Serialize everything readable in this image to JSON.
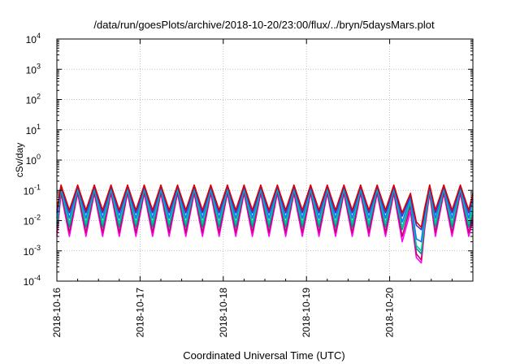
{
  "chart_data": {
    "type": "line",
    "title": "/data/run/goesPlots/archive/2018-10-20/23:00/flux/../bryn/5daysMars.plot",
    "xlabel": "Coordinated Universal Time (UTC)",
    "ylabel": "cSv/day",
    "yscale": "log",
    "ylim": [
      0.0001,
      10000
    ],
    "yticks": [
      {
        "value": 0.0001,
        "base": "10",
        "exp": "-4"
      },
      {
        "value": 0.001,
        "base": "10",
        "exp": "-3"
      },
      {
        "value": 0.01,
        "base": "10",
        "exp": "-2"
      },
      {
        "value": 0.1,
        "base": "10",
        "exp": "-1"
      },
      {
        "value": 1,
        "base": "10",
        "exp": "0"
      },
      {
        "value": 10,
        "base": "10",
        "exp": "1"
      },
      {
        "value": 100,
        "base": "10",
        "exp": "2"
      },
      {
        "value": 1000,
        "base": "10",
        "exp": "3"
      },
      {
        "value": 10000,
        "base": "10",
        "exp": "4"
      }
    ],
    "xlim": [
      "2018-10-16",
      "2018-10-21"
    ],
    "xticks": [
      "2018-10-16",
      "2018-10-17",
      "2018-10-18",
      "2018-10-19",
      "2018-10-20"
    ],
    "grid": true,
    "legend": "none",
    "x_days": [
      0,
      0.05,
      0.15,
      0.25,
      0.35,
      0.45,
      0.55,
      0.65,
      0.75,
      0.85,
      0.95,
      1.05,
      1.15,
      1.25,
      1.35,
      1.45,
      1.55,
      1.65,
      1.75,
      1.85,
      1.95,
      2.05,
      2.15,
      2.25,
      2.35,
      2.45,
      2.55,
      2.65,
      2.75,
      2.85,
      2.95,
      3.05,
      3.15,
      3.25,
      3.35,
      3.45,
      3.55,
      3.65,
      3.75,
      3.85,
      3.95,
      4.05,
      4.15,
      4.25,
      4.32,
      4.38,
      4.42,
      4.48,
      4.55,
      4.65,
      4.75,
      4.85,
      4.95,
      5.0
    ],
    "series": [
      {
        "color": "#ff00ff",
        "values": [
          0.003,
          0.08,
          0.003,
          0.08,
          0.003,
          0.08,
          0.003,
          0.08,
          0.003,
          0.08,
          0.003,
          0.08,
          0.003,
          0.08,
          0.003,
          0.08,
          0.003,
          0.08,
          0.003,
          0.08,
          0.003,
          0.08,
          0.003,
          0.08,
          0.003,
          0.08,
          0.003,
          0.08,
          0.003,
          0.08,
          0.003,
          0.08,
          0.003,
          0.08,
          0.003,
          0.08,
          0.003,
          0.08,
          0.003,
          0.08,
          0.003,
          0.08,
          0.002,
          0.02,
          0.0006,
          0.0004,
          0.005,
          0.08,
          0.003,
          0.08,
          0.003,
          0.08,
          0.003,
          0.01
        ]
      },
      {
        "color": "#cc0066",
        "values": [
          0.004,
          0.09,
          0.004,
          0.09,
          0.004,
          0.09,
          0.004,
          0.09,
          0.004,
          0.09,
          0.004,
          0.09,
          0.004,
          0.09,
          0.004,
          0.09,
          0.004,
          0.09,
          0.004,
          0.09,
          0.004,
          0.09,
          0.004,
          0.09,
          0.004,
          0.09,
          0.004,
          0.09,
          0.004,
          0.09,
          0.004,
          0.09,
          0.004,
          0.09,
          0.004,
          0.09,
          0.004,
          0.09,
          0.004,
          0.09,
          0.004,
          0.09,
          0.003,
          0.03,
          0.0008,
          0.0005,
          0.006,
          0.09,
          0.004,
          0.09,
          0.004,
          0.09,
          0.004,
          0.015
        ]
      },
      {
        "color": "#009999",
        "values": [
          0.006,
          0.11,
          0.006,
          0.11,
          0.006,
          0.11,
          0.006,
          0.11,
          0.006,
          0.11,
          0.006,
          0.11,
          0.006,
          0.11,
          0.006,
          0.11,
          0.006,
          0.11,
          0.006,
          0.11,
          0.006,
          0.11,
          0.006,
          0.11,
          0.006,
          0.11,
          0.006,
          0.11,
          0.006,
          0.11,
          0.006,
          0.11,
          0.006,
          0.11,
          0.006,
          0.11,
          0.006,
          0.11,
          0.006,
          0.11,
          0.006,
          0.11,
          0.005,
          0.04,
          0.0012,
          0.0008,
          0.008,
          0.11,
          0.006,
          0.11,
          0.006,
          0.11,
          0.006,
          0.02
        ]
      },
      {
        "color": "#00cc99",
        "values": [
          0.008,
          0.12,
          0.008,
          0.12,
          0.008,
          0.12,
          0.008,
          0.12,
          0.008,
          0.12,
          0.008,
          0.12,
          0.008,
          0.12,
          0.008,
          0.12,
          0.008,
          0.12,
          0.008,
          0.12,
          0.008,
          0.12,
          0.008,
          0.12,
          0.008,
          0.12,
          0.008,
          0.12,
          0.008,
          0.12,
          0.008,
          0.12,
          0.008,
          0.12,
          0.008,
          0.12,
          0.008,
          0.12,
          0.008,
          0.12,
          0.008,
          0.12,
          0.006,
          0.05,
          0.0015,
          0.001,
          0.01,
          0.12,
          0.008,
          0.12,
          0.008,
          0.12,
          0.008,
          0.03
        ]
      },
      {
        "color": "#1a75ff",
        "values": [
          0.012,
          0.13,
          0.012,
          0.13,
          0.012,
          0.13,
          0.012,
          0.13,
          0.012,
          0.13,
          0.012,
          0.13,
          0.012,
          0.13,
          0.012,
          0.13,
          0.012,
          0.13,
          0.012,
          0.13,
          0.012,
          0.13,
          0.012,
          0.13,
          0.012,
          0.13,
          0.012,
          0.13,
          0.012,
          0.13,
          0.012,
          0.13,
          0.012,
          0.13,
          0.012,
          0.13,
          0.012,
          0.13,
          0.012,
          0.13,
          0.012,
          0.13,
          0.009,
          0.06,
          0.0025,
          0.002,
          0.015,
          0.13,
          0.012,
          0.13,
          0.012,
          0.13,
          0.012,
          0.05
        ]
      },
      {
        "color": "#3333cc",
        "values": [
          0.018,
          0.14,
          0.018,
          0.14,
          0.018,
          0.14,
          0.018,
          0.14,
          0.018,
          0.14,
          0.018,
          0.14,
          0.018,
          0.14,
          0.018,
          0.14,
          0.018,
          0.14,
          0.018,
          0.14,
          0.018,
          0.14,
          0.018,
          0.14,
          0.018,
          0.14,
          0.018,
          0.14,
          0.018,
          0.14,
          0.018,
          0.14,
          0.018,
          0.14,
          0.018,
          0.14,
          0.018,
          0.14,
          0.018,
          0.14,
          0.018,
          0.14,
          0.014,
          0.07,
          0.007,
          0.005,
          0.02,
          0.14,
          0.018,
          0.14,
          0.018,
          0.14,
          0.018,
          0.07
        ]
      },
      {
        "color": "#dd0000",
        "values": [
          0.022,
          0.15,
          0.022,
          0.15,
          0.022,
          0.15,
          0.022,
          0.15,
          0.022,
          0.15,
          0.022,
          0.15,
          0.022,
          0.15,
          0.022,
          0.15,
          0.022,
          0.15,
          0.022,
          0.15,
          0.022,
          0.15,
          0.022,
          0.15,
          0.022,
          0.15,
          0.022,
          0.15,
          0.022,
          0.15,
          0.022,
          0.15,
          0.022,
          0.15,
          0.022,
          0.15,
          0.022,
          0.15,
          0.022,
          0.15,
          0.022,
          0.15,
          0.018,
          0.08,
          0.009,
          0.006,
          0.025,
          0.15,
          0.022,
          0.15,
          0.022,
          0.15,
          0.022,
          0.08
        ]
      }
    ]
  }
}
